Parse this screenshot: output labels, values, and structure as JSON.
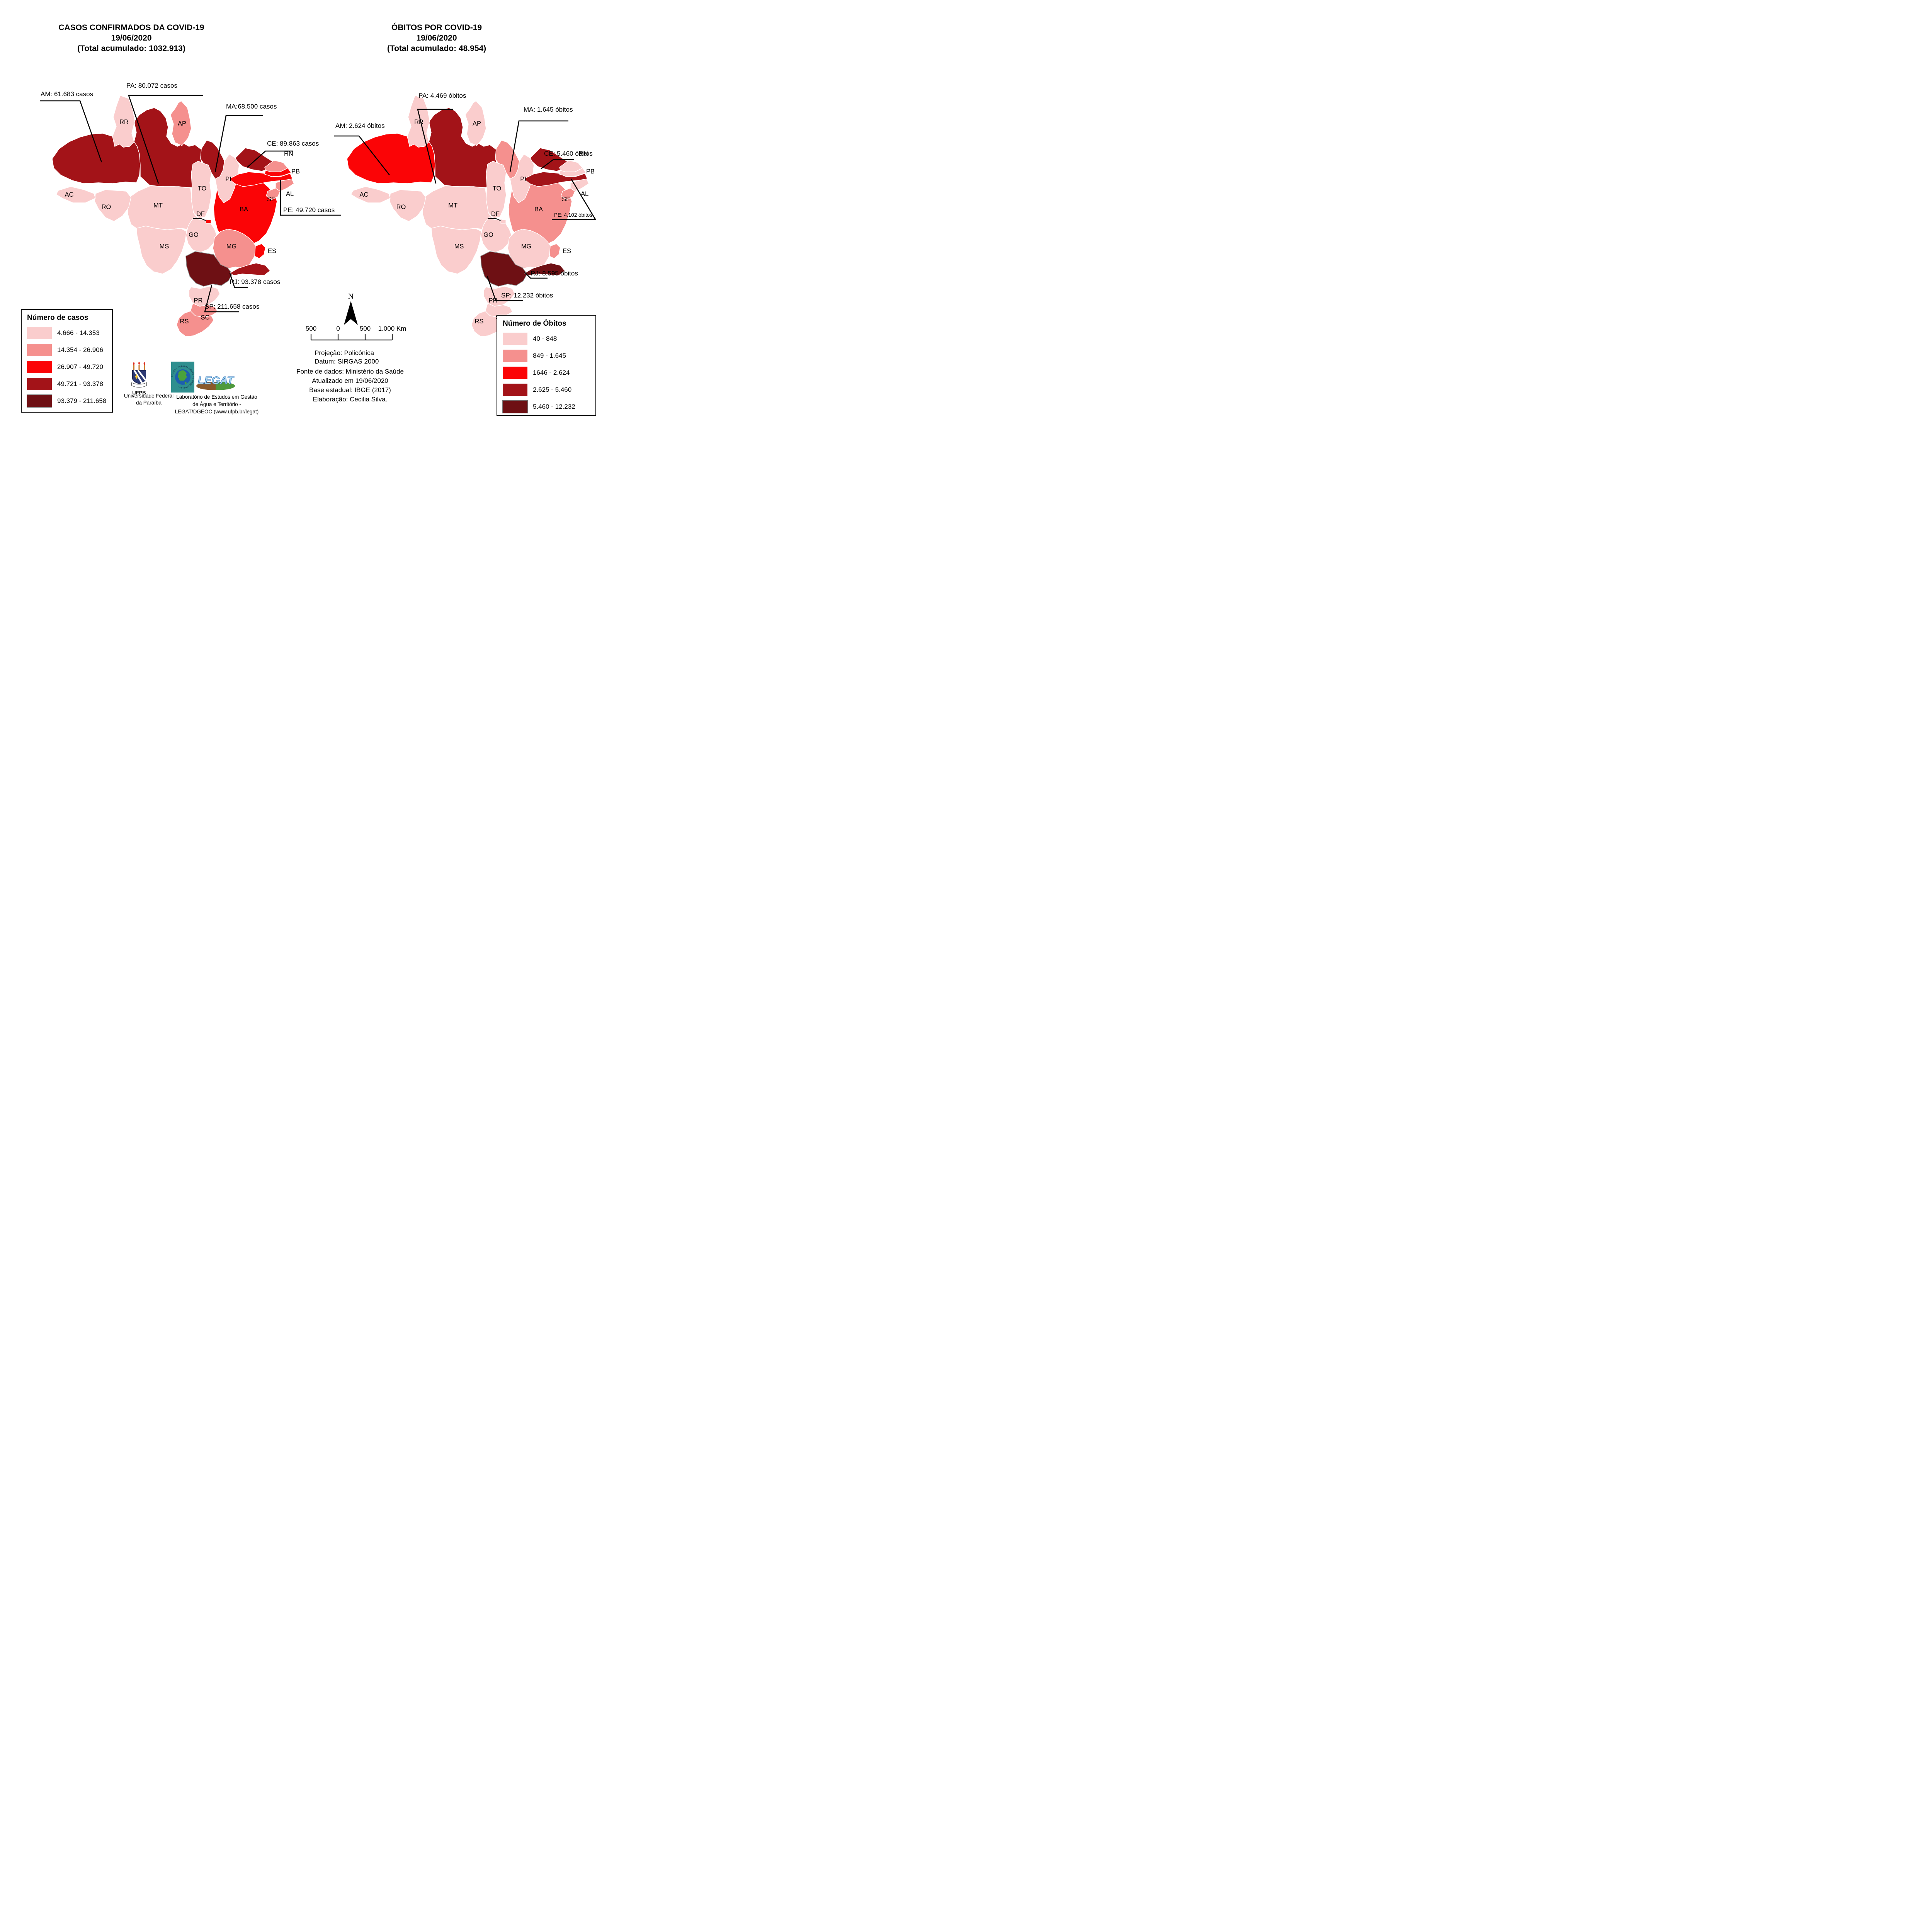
{
  "class_colors": [
    "#FACDCD",
    "#F5908E",
    "#FB0406",
    "#A31318",
    "#6E1014"
  ],
  "left_map": {
    "title": [
      "CASOS CONFIRMADOS DA COVID-19",
      "19/06/2020",
      "(Total acumulado: 1032.913)"
    ],
    "legend": {
      "title": "Número de casos",
      "classes": [
        {
          "label": "4.666 - 14.353",
          "color": "#FACDCD"
        },
        {
          "label": "14.354 - 26.906",
          "color": "#F5908E"
        },
        {
          "label": "26.907 - 49.720",
          "color": "#FB0406"
        },
        {
          "label": "49.721 - 93.378",
          "color": "#A31318"
        },
        {
          "label": "93.379 - 211.658",
          "color": "#6E1014"
        }
      ]
    },
    "annotations": [
      {
        "state": "AM",
        "text": "AM: 61.683 casos"
      },
      {
        "state": "PA",
        "text": "PA: 80.072 casos"
      },
      {
        "state": "MA",
        "text": "MA:68.500 casos"
      },
      {
        "state": "CE",
        "text": "CE: 89.863 casos"
      },
      {
        "state": "PE",
        "text": "PE: 49.720 casos"
      },
      {
        "state": "RJ",
        "text": "RJ: 93.378 casos"
      },
      {
        "state": "SP",
        "text": "SP: 211.658 casos"
      }
    ],
    "state_classes": {
      "AC": 0,
      "AL": 1,
      "AM": 3,
      "AP": 1,
      "BA": 2,
      "CE": 3,
      "DF": 2,
      "ES": 2,
      "GO": 0,
      "MA": 3,
      "MG": 1,
      "MS": 0,
      "MT": 0,
      "PA": 3,
      "PB": 2,
      "PE": 2,
      "PI": 0,
      "PR": 0,
      "RJ": 3,
      "RN": 1,
      "RO": 0,
      "RR": 0,
      "RS": 1,
      "SC": 1,
      "SE": 1,
      "SP": 4,
      "TO": 0
    }
  },
  "right_map": {
    "title": [
      "ÓBITOS POR COVID-19",
      "19/06/2020",
      "(Total acumulado: 48.954)"
    ],
    "legend": {
      "title": "Número de Óbitos",
      "classes": [
        {
          "label": "40 - 848",
          "color": "#FACDCD"
        },
        {
          "label": "849 - 1.645",
          "color": "#F5908E"
        },
        {
          "label": "1646 - 2.624",
          "color": "#FB0406"
        },
        {
          "label": "2.625 - 5.460",
          "color": "#A31318"
        },
        {
          "label": "5.460 - 12.232",
          "color": "#6E1014"
        }
      ]
    },
    "annotations": [
      {
        "state": "AM",
        "text": "AM: 2.624 óbitos"
      },
      {
        "state": "PA",
        "text": "PA: 4.469 óbitos"
      },
      {
        "state": "MA",
        "text": "MA: 1.645 óbitos"
      },
      {
        "state": "CE",
        "text": "CE: 5.460 óbitos"
      },
      {
        "state": "PE",
        "text": "PE: 4.102 óbitos"
      },
      {
        "state": "RJ",
        "text": "RJ: 8.595 óbitos"
      },
      {
        "state": "SP",
        "text": "SP: 12.232 óbitos"
      }
    ],
    "state_classes": {
      "AC": 0,
      "AL": 0,
      "AM": 2,
      "AP": 0,
      "BA": 1,
      "CE": 3,
      "DF": 0,
      "ES": 1,
      "GO": 0,
      "MA": 1,
      "MG": 0,
      "MS": 0,
      "MT": 0,
      "PA": 3,
      "PB": 0,
      "PE": 3,
      "PI": 0,
      "PR": 0,
      "RJ": 4,
      "RN": 0,
      "RO": 0,
      "RR": 0,
      "RS": 0,
      "SC": 0,
      "SE": 1,
      "SP": 4,
      "TO": 0
    }
  },
  "state_labels": [
    {
      "id": "RR",
      "text": "RR"
    },
    {
      "id": "AP",
      "text": "AP"
    },
    {
      "id": "AC",
      "text": "AC"
    },
    {
      "id": "RO",
      "text": "RO"
    },
    {
      "id": "MT",
      "text": "MT"
    },
    {
      "id": "TO",
      "text": "TO"
    },
    {
      "id": "PI",
      "text": "PI"
    },
    {
      "id": "RN",
      "text": "RN"
    },
    {
      "id": "PB",
      "text": "PB"
    },
    {
      "id": "AL",
      "text": "AL"
    },
    {
      "id": "SE",
      "text": "SE"
    },
    {
      "id": "BA",
      "text": "BA"
    },
    {
      "id": "DF",
      "text": "DF"
    },
    {
      "id": "GO",
      "text": "GO"
    },
    {
      "id": "MS",
      "text": "MS"
    },
    {
      "id": "MG",
      "text": "MG"
    },
    {
      "id": "ES",
      "text": "ES"
    },
    {
      "id": "PR",
      "text": "PR"
    },
    {
      "id": "SC",
      "text": "SC"
    },
    {
      "id": "RS",
      "text": "RS"
    }
  ],
  "north_label": "N",
  "scale_bar": {
    "labels": [
      "500",
      "0",
      "500",
      "1.000 Km"
    ]
  },
  "projection": [
    "Projeção: Policônica",
    "Datum: SIRGAS 2000"
  ],
  "source": [
    "Fonte de dados: Ministério da Saúde",
    "Atualizado em 19/06/2020",
    "Base estadual: IBGE (2017)",
    "Elaboração: Cecilia Silva."
  ],
  "logos": {
    "ufpb": {
      "acronym": "UFPB",
      "caption": [
        "Universidade Federal",
        "da Paraíba"
      ]
    },
    "dgeoc": {
      "ring_text": "DGEOC - DEPARTAMENTO DE GEOCIÊNCIAS -"
    },
    "legat": {
      "word": "LEGAT",
      "caption": [
        "Laboratório de Estudos em Gestão",
        "de Água e Território -",
        "LEGAT/DGEOC (www.ufpb.br/legat)"
      ]
    }
  }
}
